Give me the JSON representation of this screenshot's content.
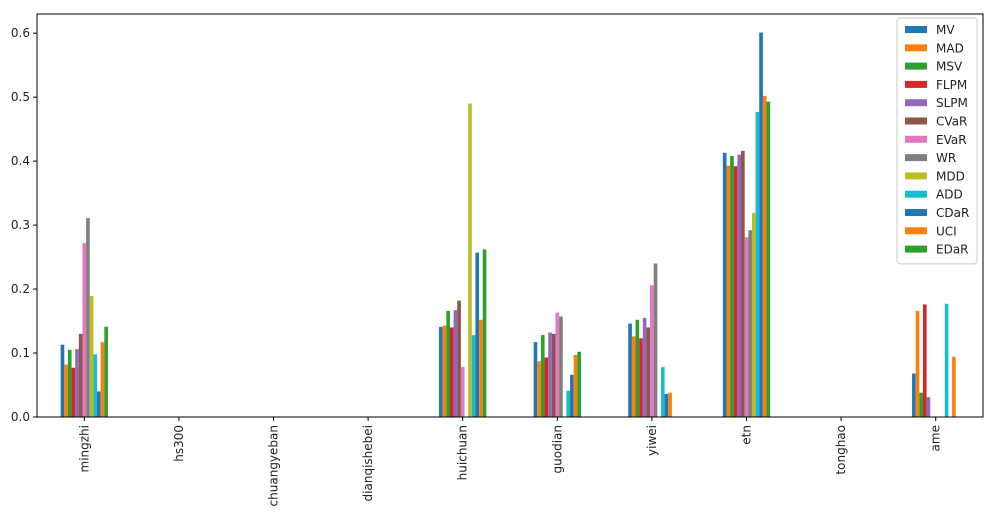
{
  "chart_data": {
    "type": "bar",
    "title": "",
    "xlabel": "",
    "ylabel": "",
    "ylim": [
      0,
      0.63
    ],
    "yticks": [
      "0.0",
      "0.1",
      "0.2",
      "0.3",
      "0.4",
      "0.5",
      "0.6"
    ],
    "grid": false,
    "legend_position": "top-right",
    "categories": [
      "mingzhi",
      "hs300",
      "chuangyeban",
      "dianqishebei",
      "huichuan",
      "guodian",
      "yiwei",
      "etn",
      "tonghao",
      "ame"
    ],
    "series": [
      {
        "name": "MV",
        "color": "#1f77b4",
        "values": [
          0.113,
          0,
          0,
          0,
          0.141,
          0.117,
          0.146,
          0.413,
          0,
          0.068
        ]
      },
      {
        "name": "MAD",
        "color": "#ff7f0e",
        "values": [
          0.082,
          0,
          0,
          0,
          0.143,
          0.087,
          0.126,
          0.393,
          0,
          0.166
        ]
      },
      {
        "name": "MSV",
        "color": "#2ca02c",
        "values": [
          0.105,
          0,
          0,
          0,
          0.166,
          0.128,
          0.152,
          0.408,
          0,
          0.038
        ]
      },
      {
        "name": "FLPM",
        "color": "#d62728",
        "values": [
          0.077,
          0,
          0,
          0,
          0.14,
          0.093,
          0.123,
          0.392,
          0,
          0.176
        ]
      },
      {
        "name": "SLPM",
        "color": "#9467bd",
        "values": [
          0.106,
          0,
          0,
          0,
          0.167,
          0.132,
          0.155,
          0.41,
          0,
          0.031
        ]
      },
      {
        "name": "CVaR",
        "color": "#8c564b",
        "values": [
          0.13,
          0,
          0,
          0,
          0.182,
          0.13,
          0.14,
          0.416,
          0,
          0.0
        ]
      },
      {
        "name": "EVaR",
        "color": "#e377c2",
        "values": [
          0.272,
          0,
          0,
          0,
          0.078,
          0.163,
          0.206,
          0.281,
          0,
          0.0
        ]
      },
      {
        "name": "WR",
        "color": "#7f7f7f",
        "values": [
          0.311,
          0,
          0,
          0,
          0.0,
          0.157,
          0.24,
          0.292,
          0,
          0.0
        ]
      },
      {
        "name": "MDD",
        "color": "#bcbd22",
        "values": [
          0.189,
          0,
          0,
          0,
          0.49,
          0.0,
          0.0,
          0.319,
          0,
          0.0
        ]
      },
      {
        "name": "ADD",
        "color": "#17becf",
        "values": [
          0.098,
          0,
          0,
          0,
          0.128,
          0.041,
          0.078,
          0.477,
          0,
          0.177
        ]
      },
      {
        "name": "CDaR",
        "color": "#1f77b4",
        "values": [
          0.04,
          0,
          0,
          0,
          0.257,
          0.066,
          0.036,
          0.601,
          0,
          0.0
        ]
      },
      {
        "name": "UCI",
        "color": "#ff7f0e",
        "values": [
          0.117,
          0,
          0,
          0,
          0.152,
          0.097,
          0.038,
          0.502,
          0,
          0.094
        ]
      },
      {
        "name": "EDaR",
        "color": "#2ca02c",
        "values": [
          0.141,
          0,
          0,
          0,
          0.262,
          0.102,
          0.0,
          0.493,
          0,
          0.0
        ]
      }
    ]
  }
}
